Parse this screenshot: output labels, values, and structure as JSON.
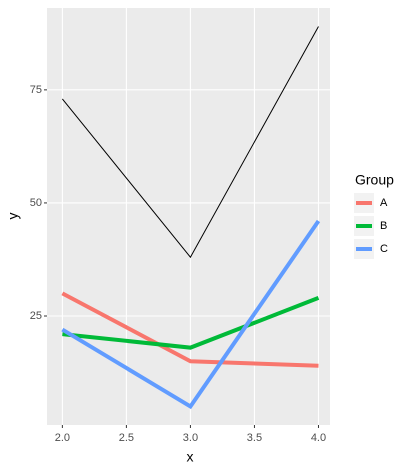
{
  "chart_data": {
    "type": "line",
    "x_label": "x",
    "y_label": "y",
    "legend_title": "Group",
    "legend": "right",
    "x": [
      2,
      3,
      4
    ],
    "series": [
      {
        "color": "#000000",
        "linewidth": 1,
        "values": [
          73,
          38,
          89
        ]
      },
      {
        "name": "A",
        "color": "#f8766d",
        "linewidth": 4,
        "values": [
          30,
          15,
          14
        ]
      },
      {
        "name": "B",
        "color": "#00ba38",
        "linewidth": 4,
        "values": [
          21,
          18,
          29
        ]
      },
      {
        "name": "C",
        "color": "#619cff",
        "linewidth": 4,
        "values": [
          22,
          5,
          46
        ]
      }
    ],
    "xlim": [
      1.88,
      4.09
    ],
    "ylim": [
      0.9,
      93.1
    ],
    "xticks": [
      {
        "value": 2,
        "label": "2.0"
      },
      2.5,
      {
        "value": 3,
        "label": "3.0"
      },
      3.5,
      {
        "value": 4,
        "label": "4.0"
      }
    ],
    "yticks": [
      25,
      50,
      75
    ],
    "grid": true
  }
}
